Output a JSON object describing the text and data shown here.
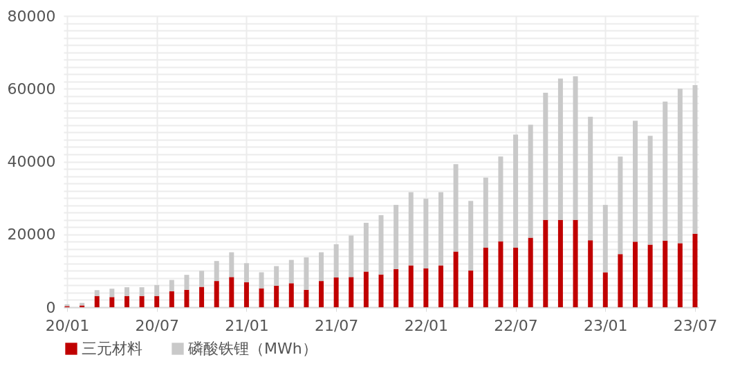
{
  "chart_data": {
    "type": "bar",
    "stacked": true,
    "categories": [
      "20/01",
      null,
      null,
      null,
      null,
      null,
      "20/07",
      null,
      null,
      null,
      null,
      null,
      "21/01",
      null,
      null,
      null,
      null,
      null,
      "21/07",
      null,
      null,
      null,
      null,
      null,
      "22/01",
      null,
      null,
      null,
      null,
      null,
      "22/07",
      null,
      null,
      null,
      null,
      null,
      "23/01",
      null,
      null,
      null,
      null,
      null,
      "23/07"
    ],
    "series": [
      {
        "name": "三元材料",
        "color": "#c00000",
        "values": [
          300,
          500,
          3100,
          2800,
          3100,
          3100,
          3100,
          4400,
          4800,
          5600,
          7200,
          8300,
          6900,
          5200,
          5900,
          6600,
          4800,
          7200,
          8200,
          8300,
          9800,
          9000,
          10500,
          11500,
          10700,
          11500,
          15300,
          10100,
          16400,
          18100,
          16400,
          19100,
          24000,
          24000,
          24000,
          18400,
          9600,
          14600,
          18000,
          17200,
          18300,
          17600,
          20200
        ]
      },
      {
        "name": "磷酸铁锂（MWh）",
        "color": "#c9c9c9",
        "values": [
          500,
          700,
          1600,
          2300,
          2400,
          2400,
          3000,
          3100,
          4100,
          4400,
          5500,
          6800,
          5200,
          4400,
          5400,
          6400,
          8900,
          7900,
          9100,
          11400,
          13400,
          16300,
          17600,
          20100,
          19100,
          20100,
          24000,
          19100,
          19200,
          23300,
          31000,
          31000,
          34900,
          38800,
          39400,
          33900,
          18500,
          26800,
          33200,
          29900,
          38200,
          42400,
          40800
        ]
      }
    ],
    "ylim": [
      0,
      80000
    ],
    "yticks": [
      0,
      {
        "value": 2000,
        "label": null
      },
      {
        "value": 4000,
        "label": null
      },
      {
        "value": 6000,
        "label": null
      },
      {
        "value": 8000,
        "label": null
      },
      {
        "value": 10000,
        "label": null
      },
      {
        "value": 12000,
        "label": null
      },
      {
        "value": 14000,
        "label": null
      },
      {
        "value": 16000,
        "label": null
      },
      {
        "value": 18000,
        "label": null
      },
      20000,
      {
        "value": 22000,
        "label": null
      },
      {
        "value": 24000,
        "label": null
      },
      {
        "value": 26000,
        "label": null
      },
      {
        "value": 28000,
        "label": null
      },
      {
        "value": 30000,
        "label": null
      },
      {
        "value": 32000,
        "label": null
      },
      {
        "value": 34000,
        "label": null
      },
      {
        "value": 36000,
        "label": null
      },
      {
        "value": 38000,
        "label": null
      },
      40000,
      {
        "value": 42000,
        "label": null
      },
      {
        "value": 44000,
        "label": null
      },
      {
        "value": 46000,
        "label": null
      },
      {
        "value": 48000,
        "label": null
      },
      {
        "value": 50000,
        "label": null
      },
      {
        "value": 52000,
        "label": null
      },
      {
        "value": 54000,
        "label": null
      },
      {
        "value": 56000,
        "label": null
      },
      {
        "value": 58000,
        "label": null
      },
      60000,
      {
        "value": 62000,
        "label": null
      },
      {
        "value": 64000,
        "label": null
      },
      {
        "value": 66000,
        "label": null
      },
      {
        "value": 68000,
        "label": null
      },
      {
        "value": 70000,
        "label": null
      },
      {
        "value": 72000,
        "label": null
      },
      {
        "value": 74000,
        "label": null
      },
      {
        "value": 76000,
        "label": null
      },
      {
        "value": 78000,
        "label": null
      },
      80000
    ],
    "grid": true,
    "legend": "bottom"
  }
}
